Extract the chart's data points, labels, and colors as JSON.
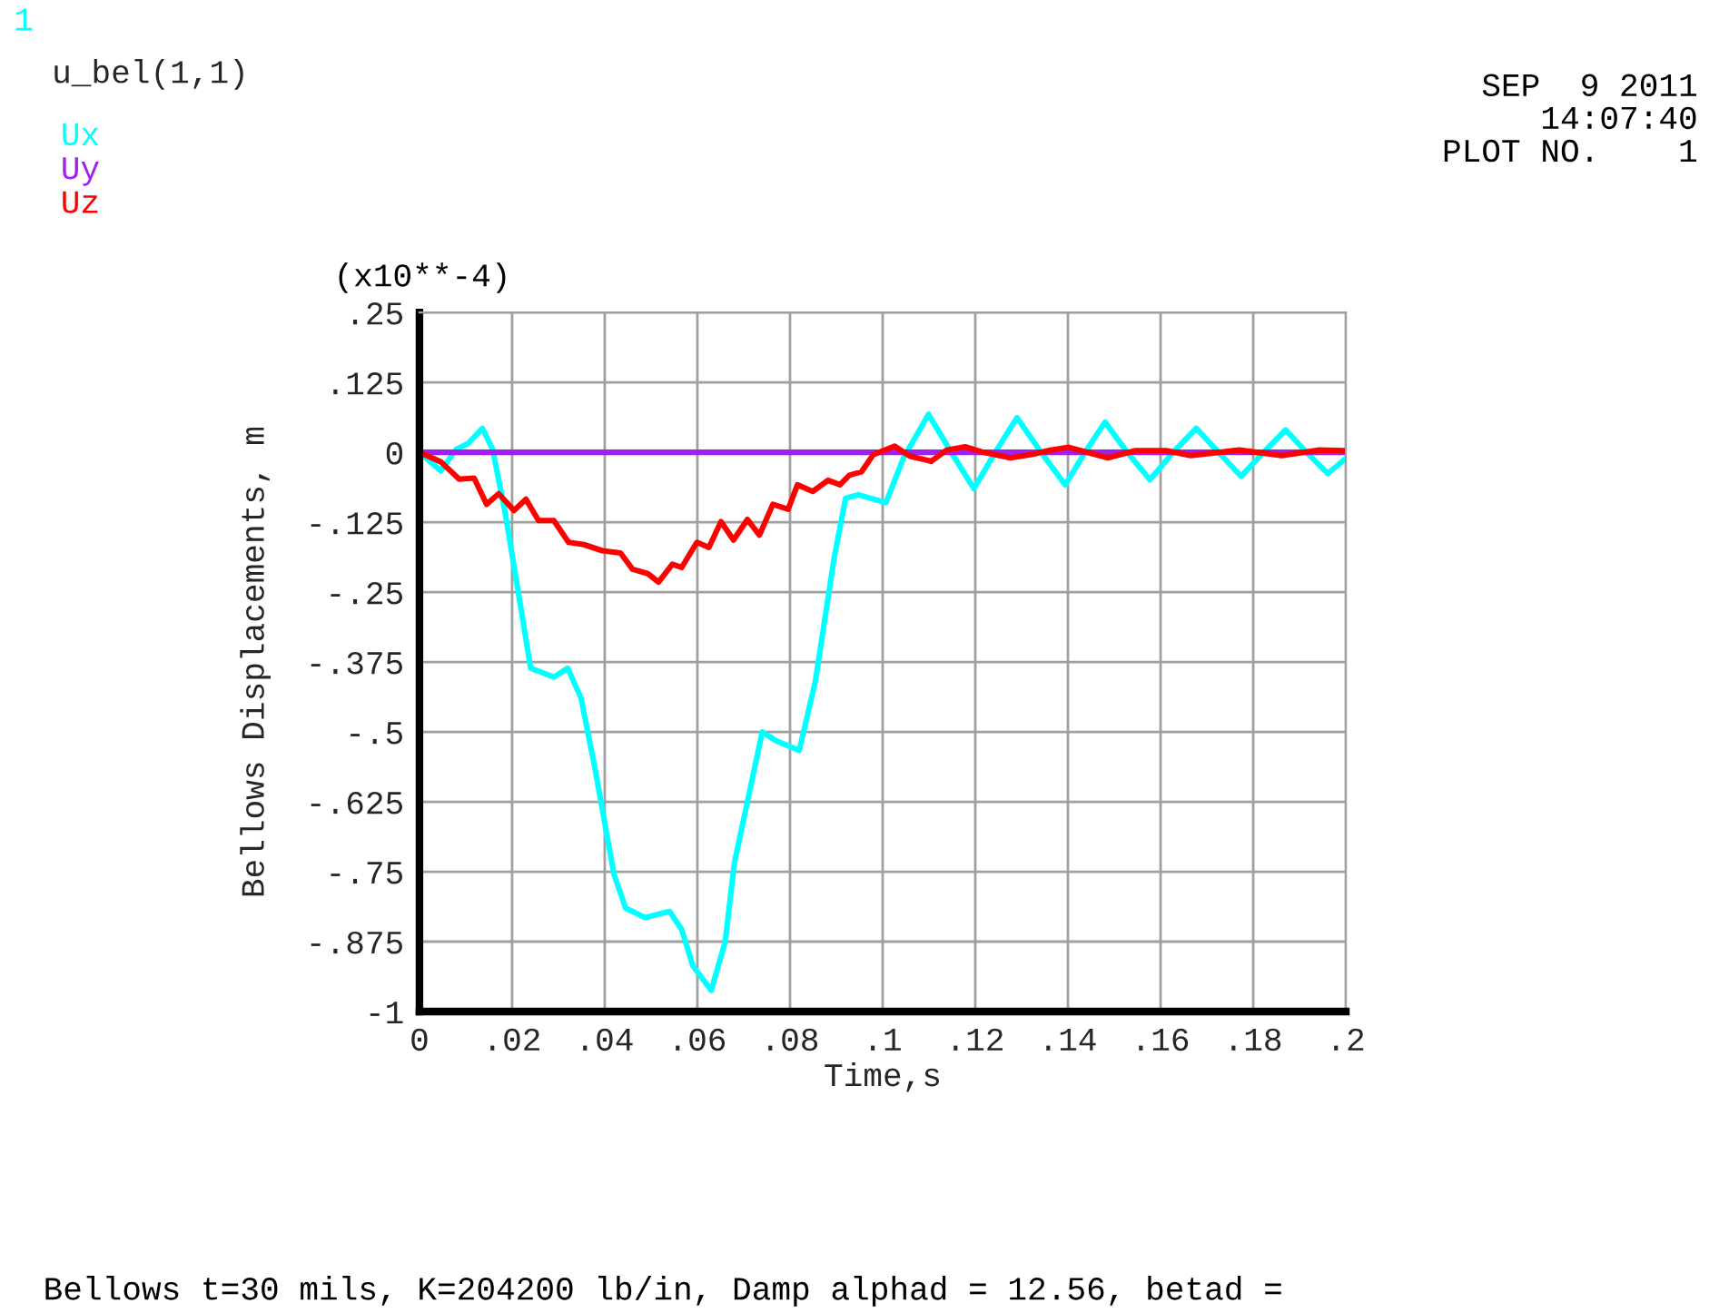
{
  "chart_data": {
    "type": "line",
    "title": "u_bel(1,1)",
    "xlabel": "Time,s",
    "ylabel": "Bellows Displacements, m",
    "annotations": [
      "1",
      "(x10**-4)",
      "SEP  9 2011",
      "14:07:40",
      "PLOT NO.    1",
      "Bellows t=30 mils, K=204200 lb/in, Damp alphad = 12.56, betad ="
    ],
    "xlim": [
      0,
      0.2
    ],
    "ylim": [
      -1,
      0.25
    ],
    "xticks": [
      0,
      {
        "value": 0.02,
        "label": ".02"
      },
      {
        "value": 0.04,
        "label": ".04"
      },
      {
        "value": 0.06,
        "label": ".06"
      },
      {
        "value": 0.08,
        "label": ".08"
      },
      {
        "value": 0.1,
        "label": ".1"
      },
      {
        "value": 0.12,
        "label": ".12"
      },
      {
        "value": 0.14,
        "label": ".14"
      },
      {
        "value": 0.16,
        "label": ".16"
      },
      {
        "value": 0.18,
        "label": ".18"
      },
      {
        "value": 0.2,
        "label": ".2"
      }
    ],
    "yticks": [
      {
        "value": -1,
        "label": "-1"
      },
      {
        "value": -0.875,
        "label": "-.875"
      },
      {
        "value": -0.75,
        "label": "-.75"
      },
      {
        "value": -0.625,
        "label": "-.625"
      },
      {
        "value": -0.5,
        "label": "-.5"
      },
      {
        "value": -0.375,
        "label": "-.375"
      },
      {
        "value": -0.25,
        "label": "-.25"
      },
      {
        "value": -0.125,
        "label": "-.125"
      },
      0,
      {
        "value": 0.125,
        "label": ".125"
      },
      {
        "value": 0.25,
        "label": ".25"
      }
    ],
    "grid": true,
    "legend": "top left",
    "line_style": "solid",
    "marker": "none",
    "series": [
      {
        "name": "Ux",
        "color": "#00ffff",
        "x": [
          0,
          0.0046,
          0.0079,
          0.0105,
          0.0136,
          0.0158,
          0.0184,
          0.021,
          0.024,
          0.029,
          0.032,
          0.0349,
          0.038,
          0.042,
          0.0445,
          0.0487,
          0.054,
          0.0566,
          0.059,
          0.063,
          0.066,
          0.068,
          0.074,
          0.077,
          0.082,
          0.0855,
          0.0895,
          0.092,
          0.0947,
          0.1007,
          0.1045,
          0.1099,
          0.1148,
          0.1197,
          0.1243,
          0.129,
          0.1342,
          0.1394,
          0.1437,
          0.148,
          0.1528,
          0.1577,
          0.1627,
          0.1677,
          0.1725,
          0.1774,
          0.1822,
          0.187,
          0.1915,
          0.1961,
          0.2
        ],
        "values": [
          0,
          -0.033,
          0.005,
          0.016,
          0.043,
          0.005,
          -0.103,
          -0.233,
          -0.386,
          -0.402,
          -0.386,
          -0.44,
          -0.57,
          -0.755,
          -0.815,
          -0.832,
          -0.821,
          -0.853,
          -0.918,
          -0.962,
          -0.875,
          -0.734,
          -0.5,
          -0.516,
          -0.533,
          -0.408,
          -0.19,
          -0.082,
          -0.076,
          -0.09,
          -0.01,
          0.068,
          0,
          -0.065,
          0,
          0.062,
          0,
          -0.058,
          0,
          0.054,
          0,
          -0.049,
          0,
          0.043,
          0,
          -0.043,
          0,
          0.04,
          0,
          -0.038,
          -0.011
        ]
      },
      {
        "name": "Uy",
        "color": "#a020f0",
        "x": [
          0,
          0.05,
          0.1,
          0.15,
          0.2
        ],
        "values": [
          0,
          0,
          0,
          0,
          0
        ]
      },
      {
        "name": "Uz",
        "color": "#ff0000",
        "x": [
          0,
          0.0046,
          0.0086,
          0.0118,
          0.0145,
          0.0171,
          0.0204,
          0.023,
          0.0257,
          0.029,
          0.0322,
          0.0355,
          0.0395,
          0.0434,
          0.046,
          0.0493,
          0.0516,
          0.0546,
          0.0566,
          0.0599,
          0.0625,
          0.0651,
          0.0678,
          0.0708,
          0.0734,
          0.0763,
          0.0796,
          0.0816,
          0.0849,
          0.0882,
          0.0908,
          0.0928,
          0.0954,
          0.098,
          0.1026,
          0.1059,
          0.1105,
          0.1138,
          0.1178,
          0.1217,
          0.1276,
          0.1322,
          0.1362,
          0.1402,
          0.1486,
          0.1546,
          0.1612,
          0.1665,
          0.177,
          0.1862,
          0.194,
          0.2
        ],
        "values": [
          0,
          -0.017,
          -0.048,
          -0.046,
          -0.093,
          -0.074,
          -0.104,
          -0.084,
          -0.122,
          -0.122,
          -0.161,
          -0.165,
          -0.176,
          -0.18,
          -0.209,
          -0.217,
          -0.232,
          -0.2,
          -0.206,
          -0.161,
          -0.17,
          -0.124,
          -0.157,
          -0.12,
          -0.148,
          -0.093,
          -0.102,
          -0.058,
          -0.07,
          -0.05,
          -0.058,
          -0.041,
          -0.035,
          -0.004,
          0.011,
          -0.007,
          -0.016,
          0.004,
          0.01,
          0,
          -0.01,
          -0.004,
          0.004,
          0.009,
          -0.01,
          0.003,
          0.003,
          -0.006,
          0.004,
          -0.006,
          0.004,
          0.003
        ]
      }
    ]
  }
}
